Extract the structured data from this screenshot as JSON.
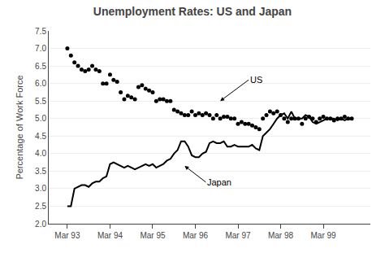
{
  "chart_data": {
    "type": "line",
    "title": "Unemployment Rates: US and Japan",
    "ylabel": "Percentage of Work Force",
    "categories": [
      "Mar 93",
      null,
      null,
      null,
      null,
      null,
      null,
      null,
      null,
      null,
      null,
      null,
      "Mar 94",
      null,
      null,
      null,
      null,
      null,
      null,
      null,
      null,
      null,
      null,
      null,
      "Mar 95",
      null,
      null,
      null,
      null,
      null,
      null,
      null,
      null,
      null,
      null,
      null,
      "Mar 96",
      null,
      null,
      null,
      null,
      null,
      null,
      null,
      null,
      null,
      null,
      null,
      "Mar 97",
      null,
      null,
      null,
      null,
      null,
      null,
      null,
      null,
      null,
      null,
      null,
      "Mar 98",
      null,
      null,
      null,
      null,
      null,
      null,
      null,
      null,
      null,
      null,
      null,
      "Mar 99",
      null,
      null,
      null,
      null,
      null,
      null,
      null,
      null
    ],
    "series": [
      {
        "name": "US",
        "type": "scatter",
        "color": "#000000",
        "marker": "circle",
        "line_style": "none",
        "values": [
          7.0,
          6.8,
          6.6,
          6.5,
          6.4,
          6.35,
          6.4,
          6.5,
          6.4,
          6.35,
          6.0,
          6.0,
          6.25,
          6.1,
          6.05,
          5.75,
          5.55,
          5.65,
          5.6,
          5.55,
          5.9,
          5.95,
          5.85,
          5.8,
          5.75,
          5.5,
          5.55,
          5.55,
          5.5,
          5.5,
          5.25,
          5.2,
          5.15,
          5.1,
          5.1,
          5.2,
          5.1,
          5.15,
          5.1,
          5.15,
          5.1,
          5.0,
          5.1,
          5.0,
          5.05,
          5.05,
          5.0,
          5.0,
          4.85,
          4.9,
          4.85,
          4.85,
          4.8,
          4.75,
          4.7,
          5.0,
          5.1,
          5.2,
          5.15,
          5.2,
          5.1,
          5.0,
          4.9,
          5.0,
          5.0,
          5.0,
          4.85,
          5.0,
          5.05,
          5.0,
          4.9,
          5.0,
          5.05,
          5.0,
          5.0,
          4.95,
          5.0,
          5.0,
          5.05,
          5.0,
          5.0
        ]
      },
      {
        "name": "Japan",
        "type": "line",
        "color": "#000000",
        "line_style": "solid",
        "values": [
          2.5,
          2.5,
          3.0,
          3.05,
          3.1,
          3.1,
          3.05,
          3.15,
          3.2,
          3.2,
          3.3,
          3.35,
          3.7,
          3.75,
          3.7,
          3.65,
          3.6,
          3.65,
          3.6,
          3.55,
          3.6,
          3.65,
          3.7,
          3.65,
          3.7,
          3.6,
          3.65,
          3.7,
          3.8,
          3.85,
          4.0,
          4.1,
          4.35,
          4.35,
          4.2,
          3.95,
          3.9,
          3.9,
          4.0,
          4.05,
          4.3,
          4.35,
          4.3,
          4.3,
          4.35,
          4.2,
          4.2,
          4.25,
          4.2,
          4.2,
          4.2,
          4.2,
          4.25,
          4.15,
          4.1,
          4.5,
          4.6,
          4.7,
          4.85,
          5.0,
          5.1,
          5.15,
          5.0,
          5.2,
          5.0,
          5.0,
          5.0,
          5.1,
          5.05,
          4.9,
          4.85,
          4.9,
          4.95,
          5.0,
          5.0,
          5.0,
          4.95,
          5.0,
          4.95,
          5.0,
          5.0
        ]
      }
    ],
    "ylim": [
      2.0,
      7.5
    ],
    "yticks": [
      {
        "value": 2.0,
        "label": "2.0"
      },
      2.5,
      {
        "value": 3.0,
        "label": "3.0"
      },
      3.5,
      {
        "value": 4.0,
        "label": "4.0"
      },
      4.5,
      {
        "value": 5.0,
        "label": "5.0"
      },
      5.5,
      {
        "value": 6.0,
        "label": "6.0"
      },
      6.5,
      {
        "value": 7.0,
        "label": "7.0"
      },
      7.5
    ],
    "grid": true,
    "annotations": [
      {
        "text": "US",
        "x": 43,
        "y": 5.5
      },
      {
        "text": "Japan",
        "x": 33,
        "y": 3.65
      }
    ]
  }
}
